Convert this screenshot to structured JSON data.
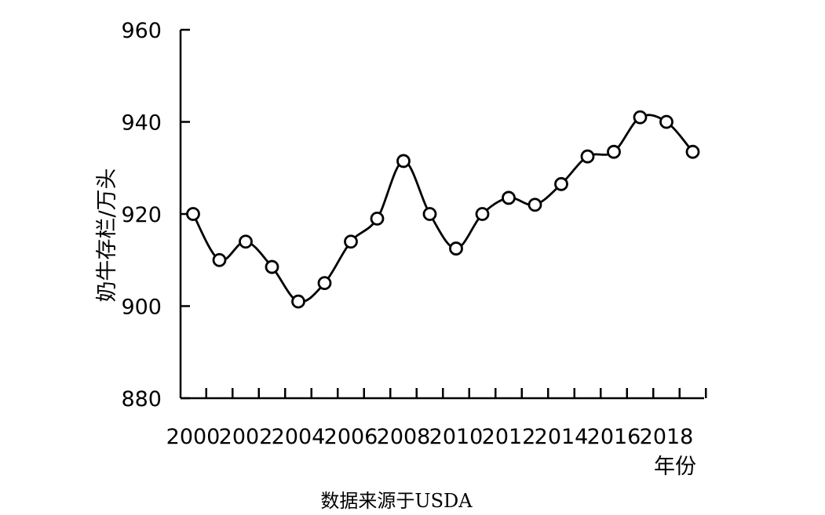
{
  "chart_data": {
    "type": "line",
    "title": "",
    "ylabel": "奶牛存栏/万头",
    "xlabel": "年份",
    "ylim": [
      880,
      960
    ],
    "yticks": [
      880,
      900,
      920,
      940,
      960
    ],
    "xtick_labels": [
      "2000",
      "2002",
      "2004",
      "2006",
      "2008",
      "2010",
      "2012",
      "2014",
      "2016",
      "2018"
    ],
    "grid": false,
    "marker": "open-circle",
    "line_color": "#000000",
    "series": [
      {
        "x": [
          2000,
          2001,
          2002,
          2003,
          2004,
          2005,
          2006,
          2007,
          2008,
          2009,
          2010,
          2011,
          2012,
          2013,
          2014,
          2015,
          2016,
          2017,
          2018,
          2019
        ],
        "values": [
          920,
          910,
          914,
          908.5,
          901,
          905,
          914,
          919,
          931.5,
          920,
          912.5,
          920,
          923.5,
          922,
          926.5,
          932.5,
          933.5,
          941,
          940,
          933.5
        ]
      }
    ]
  },
  "source_note": "数据来源于USDA"
}
